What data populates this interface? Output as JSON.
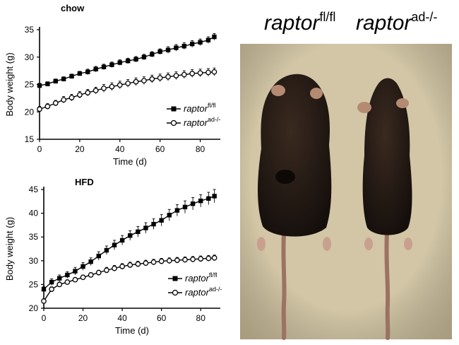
{
  "chart_data": [
    {
      "type": "line",
      "title": "chow",
      "xlabel": "Time (d)",
      "ylabel": "Body weight (g)",
      "xlim": [
        0,
        90
      ],
      "ylim": [
        15,
        35
      ],
      "xticks": [
        0,
        20,
        40,
        60,
        80
      ],
      "yticks": [
        15,
        20,
        25,
        30,
        35
      ],
      "legend_position": "right",
      "series": [
        {
          "name": "raptor",
          "name_superscript": "fl/fl",
          "marker": "filled-square",
          "color": "#000000",
          "x": [
            0,
            4,
            8,
            12,
            16,
            20,
            24,
            28,
            32,
            36,
            40,
            44,
            48,
            52,
            56,
            60,
            64,
            68,
            72,
            76,
            80,
            84,
            87
          ],
          "y": [
            24.8,
            25.1,
            25.6,
            26.0,
            26.5,
            27.0,
            27.3,
            27.8,
            28.2,
            28.6,
            29.0,
            29.3,
            29.6,
            30.0,
            30.5,
            31.0,
            31.3,
            31.7,
            32.0,
            32.4,
            32.7,
            33.1,
            33.7
          ],
          "error": [
            0.4,
            0.4,
            0.4,
            0.4,
            0.4,
            0.4,
            0.5,
            0.5,
            0.5,
            0.5,
            0.5,
            0.5,
            0.5,
            0.5,
            0.5,
            0.5,
            0.6,
            0.6,
            0.6,
            0.6,
            0.6,
            0.6,
            0.6
          ]
        },
        {
          "name": "raptor",
          "name_superscript": "ad-/-",
          "marker": "open-circle",
          "color": "#000000",
          "x": [
            0,
            4,
            8,
            12,
            16,
            20,
            24,
            28,
            32,
            36,
            40,
            44,
            48,
            52,
            56,
            60,
            64,
            68,
            72,
            76,
            80,
            84,
            87
          ],
          "y": [
            20.5,
            21.0,
            21.6,
            22.2,
            22.6,
            23.1,
            23.5,
            23.9,
            24.3,
            24.6,
            24.9,
            25.2,
            25.5,
            25.7,
            26.0,
            26.2,
            26.4,
            26.6,
            26.8,
            27.0,
            27.1,
            27.2,
            27.3
          ],
          "error": [
            0.5,
            0.5,
            0.5,
            0.6,
            0.6,
            0.6,
            0.6,
            0.6,
            0.7,
            0.7,
            0.7,
            0.7,
            0.7,
            0.7,
            0.7,
            0.7,
            0.7,
            0.7,
            0.7,
            0.7,
            0.7,
            0.7,
            0.7
          ]
        }
      ]
    },
    {
      "type": "line",
      "title": "HFD",
      "xlabel": "Time (d)",
      "ylabel": "Body weight (g)",
      "xlim": [
        0,
        90
      ],
      "ylim": [
        20,
        45
      ],
      "xticks": [
        0,
        20,
        40,
        60,
        80
      ],
      "yticks": [
        20,
        25,
        30,
        35,
        40,
        45
      ],
      "legend_position": "right",
      "series": [
        {
          "name": "raptor",
          "name_superscript": "fl/fl",
          "marker": "filled-square",
          "color": "#000000",
          "x": [
            0,
            4,
            8,
            12,
            16,
            20,
            24,
            28,
            32,
            36,
            40,
            44,
            48,
            52,
            56,
            60,
            64,
            68,
            72,
            76,
            80,
            84,
            87
          ],
          "y": [
            24.0,
            25.5,
            26.3,
            27.0,
            27.8,
            28.8,
            29.8,
            31.0,
            32.2,
            33.3,
            34.3,
            35.3,
            36.1,
            36.9,
            37.7,
            38.5,
            39.6,
            40.6,
            41.3,
            42.0,
            42.6,
            43.1,
            43.6
          ],
          "error": [
            0.6,
            0.7,
            0.7,
            0.7,
            0.8,
            0.8,
            0.8,
            0.9,
            0.9,
            1.0,
            1.0,
            1.0,
            1.1,
            1.1,
            1.1,
            1.2,
            1.2,
            1.2,
            1.3,
            1.3,
            1.3,
            1.3,
            1.4
          ]
        },
        {
          "name": "raptor",
          "name_superscript": "ad-/-",
          "marker": "open-circle",
          "color": "#000000",
          "x": [
            0,
            4,
            8,
            12,
            16,
            20,
            24,
            28,
            32,
            36,
            40,
            44,
            48,
            52,
            56,
            60,
            64,
            68,
            72,
            76,
            80,
            84,
            87
          ],
          "y": [
            21.5,
            24.0,
            25.0,
            25.5,
            26.0,
            26.5,
            27.0,
            27.5,
            28.0,
            28.4,
            28.8,
            29.1,
            29.3,
            29.5,
            29.7,
            29.9,
            30.0,
            30.1,
            30.2,
            30.3,
            30.4,
            30.5,
            30.6
          ],
          "error": [
            0.5,
            0.5,
            0.5,
            0.5,
            0.5,
            0.5,
            0.5,
            0.5,
            0.6,
            0.6,
            0.6,
            0.6,
            0.6,
            0.6,
            0.6,
            0.6,
            0.6,
            0.6,
            0.6,
            0.6,
            0.6,
            0.6,
            0.6
          ]
        }
      ]
    }
  ],
  "photo": {
    "labels": [
      {
        "base": "raptor",
        "sup": "fl/fl"
      },
      {
        "base": "raptor",
        "sup": "ad-/-"
      }
    ],
    "colors": {
      "background": "#d2c6a6",
      "fur": "#1b1511",
      "fur_highlight": "#3a2a20",
      "ear_skin": "#b58a72",
      "tail": "#9c7262",
      "paw": "#c9a08e"
    }
  }
}
